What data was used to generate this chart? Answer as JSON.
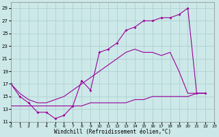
{
  "bg_color": "#cce8e8",
  "grid_color": "#aacccc",
  "line_color": "#990099",
  "xlim": [
    0,
    23
  ],
  "ylim": [
    11,
    30
  ],
  "xticks": [
    0,
    1,
    2,
    3,
    4,
    5,
    6,
    7,
    8,
    9,
    10,
    11,
    12,
    13,
    14,
    15,
    16,
    17,
    18,
    19,
    20,
    21,
    22,
    23
  ],
  "yticks": [
    11,
    13,
    15,
    17,
    19,
    21,
    23,
    25,
    27,
    29
  ],
  "xlabel": "Windchill (Refroidissement éolien,°C)",
  "line1_x": [
    0,
    1,
    2,
    3,
    4,
    5,
    6,
    7,
    8,
    9,
    10,
    11,
    12,
    13,
    14,
    15,
    16,
    17,
    18,
    19,
    20,
    21,
    22
  ],
  "line1_y": [
    17,
    15,
    14,
    12.5,
    12.5,
    11.5,
    12,
    13.5,
    17.5,
    16,
    22,
    22.5,
    23.5,
    25.5,
    26,
    27,
    27,
    27.5,
    27.5,
    28,
    29,
    15.5,
    15.5
  ],
  "line2_x": [
    0,
    1,
    2,
    3,
    4,
    5,
    6,
    7,
    8,
    9,
    10,
    11,
    12,
    13,
    14,
    15,
    16,
    17,
    18,
    19,
    20,
    21,
    22
  ],
  "line2_y": [
    17,
    15.5,
    14.5,
    14,
    14,
    14.5,
    15,
    16,
    17,
    18,
    19,
    20,
    21,
    22,
    22.5,
    22,
    22,
    21.5,
    22,
    19,
    15.5,
    15.5,
    15.5
  ],
  "line3_x": [
    0,
    1,
    2,
    3,
    4,
    5,
    6,
    7,
    8,
    9,
    10,
    11,
    12,
    13,
    14,
    15,
    16,
    17,
    18,
    19,
    20,
    21,
    22
  ],
  "line3_y": [
    13.5,
    13.5,
    13.5,
    13.5,
    13.5,
    13.5,
    13.5,
    13.5,
    13.5,
    14,
    14,
    14,
    14,
    14,
    14.5,
    14.5,
    15,
    15,
    15,
    15,
    15,
    15.5,
    15.5
  ]
}
